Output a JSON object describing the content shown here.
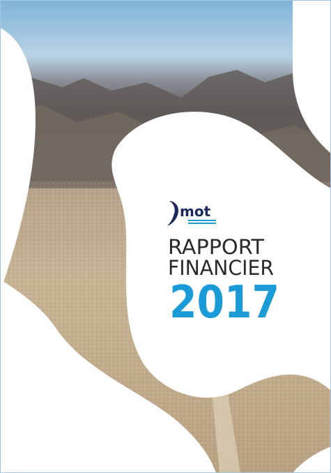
{
  "logo": {
    "name": "mot"
  },
  "title": {
    "line1": "RAPPORT",
    "line2": "FINANCIER"
  },
  "year": "2017"
}
